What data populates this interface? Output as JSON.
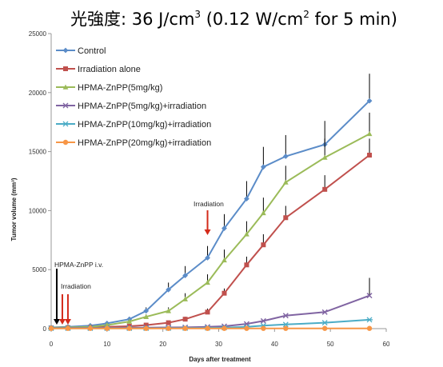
{
  "header": {
    "title_main": "光強度",
    "title_value": ":  36 J/cm",
    "title_sup1": "3",
    "title_paren": " (0.12 W/cm",
    "title_sup2": "2",
    "title_tail": " for 5 min)"
  },
  "colors": {
    "Control": "#5b8cc8",
    "Irradiation alone": "#c0504d",
    "HPMA-ZnPP(5mg/kg)": "#9bbb59",
    "HPMA-ZnPP(5mg/kg)+irradiation": "#8064a2",
    "HPMA-ZnPP(10mg/kg)+irradiation": "#4bacc6",
    "HPMA-ZnPP(20mg/kg)+irradiation": "#f79646",
    "arrow_black": "#000000",
    "arrow_red": "#d42a1a",
    "axis": "#999999"
  },
  "chart_data": {
    "type": "line",
    "xlabel": "Days after treatment",
    "ylabel": "Tumor volume (mm³)",
    "xlim": [
      0,
      60
    ],
    "ylim": [
      0,
      25000
    ],
    "xticks": [
      "0",
      "10",
      "20",
      "30",
      "40",
      "50",
      "60"
    ],
    "yticks": [
      "0",
      "5000",
      "10000",
      "15000",
      "20000",
      "25000"
    ],
    "legend_position": "top-left",
    "series": [
      {
        "name": "Control",
        "marker": "diamond",
        "x": [
          0,
          3,
          7,
          10,
          14,
          17,
          21,
          24,
          28,
          31,
          35,
          38,
          42,
          49,
          57
        ],
        "y": [
          100,
          150,
          250,
          450,
          800,
          1500,
          3300,
          4500,
          6000,
          8500,
          11000,
          13700,
          14600,
          15600,
          19300
        ],
        "err": [
          0,
          0,
          0,
          0,
          200,
          300,
          600,
          800,
          1000,
          1200,
          1500,
          1700,
          1800,
          2000,
          2300
        ]
      },
      {
        "name": "Irradiation alone",
        "marker": "square",
        "x": [
          0,
          3,
          7,
          10,
          14,
          17,
          21,
          24,
          28,
          31,
          35,
          38,
          42,
          49,
          57
        ],
        "y": [
          50,
          80,
          100,
          150,
          200,
          300,
          500,
          800,
          1400,
          3000,
          5400,
          7100,
          9400,
          11800,
          14700
        ],
        "err": [
          0,
          0,
          0,
          0,
          0,
          0,
          100,
          200,
          300,
          400,
          700,
          900,
          1000,
          1200,
          1400
        ]
      },
      {
        "name": "HPMA-ZnPP(5mg/kg)",
        "marker": "triangle",
        "x": [
          0,
          3,
          7,
          10,
          14,
          17,
          21,
          24,
          28,
          31,
          35,
          38,
          42,
          49,
          57
        ],
        "y": [
          80,
          100,
          150,
          300,
          600,
          1000,
          1500,
          2500,
          3900,
          5800,
          8000,
          9800,
          12400,
          14500,
          16500
        ],
        "err": [
          0,
          0,
          0,
          0,
          0,
          200,
          300,
          500,
          700,
          900,
          1100,
          1300,
          1400,
          1600,
          1800
        ]
      },
      {
        "name": "HPMA-ZnPP(5mg/kg)+irradiation",
        "marker": "x",
        "x": [
          0,
          3,
          7,
          10,
          14,
          17,
          21,
          24,
          28,
          31,
          35,
          38,
          42,
          49,
          57
        ],
        "y": [
          50,
          60,
          60,
          70,
          80,
          90,
          100,
          110,
          150,
          200,
          400,
          650,
          1100,
          1400,
          2800
        ],
        "err": [
          0,
          0,
          0,
          0,
          0,
          0,
          0,
          0,
          0,
          0,
          0,
          0,
          0,
          0,
          1500
        ]
      },
      {
        "name": "HPMA-ZnPP(10mg/kg)+irradiation",
        "marker": "star",
        "x": [
          0,
          3,
          7,
          10,
          14,
          17,
          21,
          24,
          28,
          31,
          35,
          38,
          42,
          49,
          57
        ],
        "y": [
          30,
          30,
          30,
          30,
          30,
          30,
          40,
          40,
          60,
          80,
          150,
          250,
          350,
          500,
          750
        ],
        "err": [
          0,
          0,
          0,
          0,
          0,
          0,
          0,
          0,
          0,
          0,
          0,
          0,
          0,
          0,
          0
        ]
      },
      {
        "name": "HPMA-ZnPP(20mg/kg)+irradiation",
        "marker": "circle",
        "x": [
          0,
          3,
          7,
          10,
          14,
          17,
          21,
          24,
          28,
          31,
          35,
          38,
          42,
          49,
          57
        ],
        "y": [
          20,
          20,
          20,
          20,
          20,
          20,
          20,
          20,
          20,
          20,
          20,
          20,
          20,
          20,
          20
        ],
        "err": [
          0,
          0,
          0,
          0,
          0,
          0,
          0,
          0,
          0,
          0,
          0,
          0,
          0,
          0,
          0
        ]
      }
    ],
    "annotations": [
      {
        "text": "HPMA-ZnPP i.v.",
        "x": 1,
        "color": "arrow_black"
      },
      {
        "text": "Irradiation",
        "x": [
          2,
          3
        ],
        "color": "arrow_red"
      },
      {
        "text": "Irradiation",
        "x": 28,
        "color": "arrow_red"
      }
    ]
  }
}
